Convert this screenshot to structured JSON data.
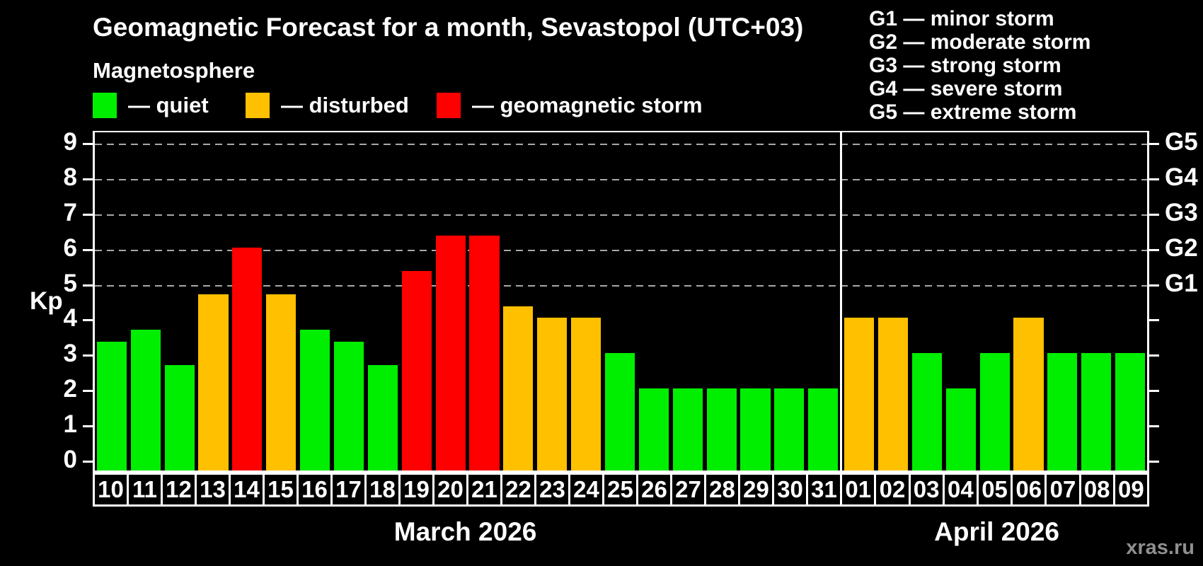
{
  "title": "Geomagnetic Forecast for a month, Sevastopol (UTC+03)",
  "subtitle": "Magnetosphere",
  "legend": {
    "items": [
      {
        "label": "— quiet",
        "level": "quiet"
      },
      {
        "label": "— disturbed",
        "level": "disturbed"
      },
      {
        "label": "— geomagnetic storm",
        "level": "storm"
      }
    ]
  },
  "storm_scale_legend": [
    "G1 — minor storm",
    "G2 — moderate storm",
    "G3 — strong storm",
    "G4 — severe storm",
    "G5 — extreme storm"
  ],
  "watermark": "xras.ru",
  "colors": {
    "quiet": "#00ee00",
    "disturbed": "#ffc000",
    "storm": "#ff0000",
    "grid": "#a8a8a8",
    "axis": "#ffffff",
    "background": "#000000",
    "watermark": "#8f8f8f"
  },
  "chart_data": {
    "type": "bar",
    "ylabel": "Kp",
    "ylim": [
      0,
      9.35
    ],
    "yticks": [
      0,
      1,
      2,
      3,
      4,
      5,
      6,
      7,
      8,
      9
    ],
    "gridlines_kp": [
      5,
      6,
      7,
      8,
      9
    ],
    "grid": true,
    "right_axis_labels": [
      {
        "label": "G1",
        "kp": 5
      },
      {
        "label": "G2",
        "kp": 6
      },
      {
        "label": "G3",
        "kp": 7
      },
      {
        "label": "G4",
        "kp": 8
      },
      {
        "label": "G5",
        "kp": 9
      }
    ],
    "months": [
      {
        "label": "March 2026",
        "days": [
          {
            "date": "10",
            "kp": 3.33,
            "level": "quiet"
          },
          {
            "date": "11",
            "kp": 3.67,
            "level": "quiet"
          },
          {
            "date": "12",
            "kp": 2.67,
            "level": "quiet"
          },
          {
            "date": "13",
            "kp": 4.67,
            "level": "disturbed"
          },
          {
            "date": "14",
            "kp": 6.0,
            "level": "storm"
          },
          {
            "date": "15",
            "kp": 4.67,
            "level": "disturbed"
          },
          {
            "date": "16",
            "kp": 3.67,
            "level": "quiet"
          },
          {
            "date": "17",
            "kp": 3.33,
            "level": "quiet"
          },
          {
            "date": "18",
            "kp": 2.67,
            "level": "quiet"
          },
          {
            "date": "19",
            "kp": 5.33,
            "level": "storm"
          },
          {
            "date": "20",
            "kp": 6.33,
            "level": "storm"
          },
          {
            "date": "21",
            "kp": 6.33,
            "level": "storm"
          },
          {
            "date": "22",
            "kp": 4.33,
            "level": "disturbed"
          },
          {
            "date": "23",
            "kp": 4.0,
            "level": "disturbed"
          },
          {
            "date": "24",
            "kp": 4.0,
            "level": "disturbed"
          },
          {
            "date": "25",
            "kp": 3.0,
            "level": "quiet"
          },
          {
            "date": "26",
            "kp": 2.0,
            "level": "quiet"
          },
          {
            "date": "27",
            "kp": 2.0,
            "level": "quiet"
          },
          {
            "date": "28",
            "kp": 2.0,
            "level": "quiet"
          },
          {
            "date": "29",
            "kp": 2.0,
            "level": "quiet"
          },
          {
            "date": "30",
            "kp": 2.0,
            "level": "quiet"
          },
          {
            "date": "31",
            "kp": 2.0,
            "level": "quiet"
          }
        ]
      },
      {
        "label": "April 2026",
        "days": [
          {
            "date": "01",
            "kp": 4.0,
            "level": "disturbed"
          },
          {
            "date": "02",
            "kp": 4.0,
            "level": "disturbed"
          },
          {
            "date": "03",
            "kp": 3.0,
            "level": "quiet"
          },
          {
            "date": "04",
            "kp": 2.0,
            "level": "quiet"
          },
          {
            "date": "05",
            "kp": 3.0,
            "level": "quiet"
          },
          {
            "date": "06",
            "kp": 4.0,
            "level": "disturbed"
          },
          {
            "date": "07",
            "kp": 3.0,
            "level": "quiet"
          },
          {
            "date": "08",
            "kp": 3.0,
            "level": "quiet"
          },
          {
            "date": "09",
            "kp": 3.0,
            "level": "quiet"
          }
        ]
      }
    ]
  }
}
